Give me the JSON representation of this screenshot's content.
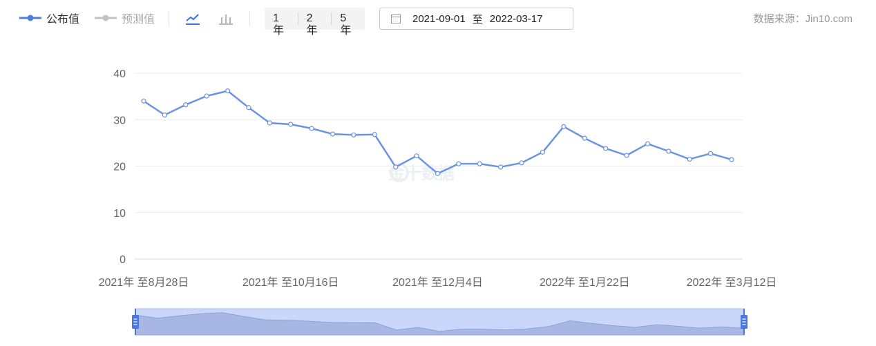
{
  "legend": {
    "published": {
      "label": "公布值",
      "color": "#4e7fe0"
    },
    "forecast": {
      "label": "预测值",
      "color": "#c2c2c2"
    }
  },
  "chart_type_buttons": {
    "line_icon": "line-chart-icon",
    "bar_icon": "bar-chart-icon"
  },
  "range_buttons": [
    "1年",
    "2年",
    "5年"
  ],
  "date_range": {
    "start": "2021-09-01",
    "separator": "至",
    "end": "2022-03-17"
  },
  "source_label": "数据来源：Jin10.com",
  "watermark": "金十数据",
  "chart_data": {
    "type": "line",
    "title": "",
    "xlabel": "",
    "ylabel": "",
    "ylim": [
      0,
      40
    ],
    "yticks": [
      0,
      10,
      20,
      30,
      40
    ],
    "x_tick_labels": [
      "2021年 至8月28日",
      "2021年 至10月16日",
      "2021年 至12月4日",
      "2022年 至1月22日",
      "2022年 至3月12日"
    ],
    "x_tick_indices": [
      0,
      7,
      14,
      21,
      28
    ],
    "grid": true,
    "series": [
      {
        "name": "公布值",
        "color": "#6a93e0",
        "values": [
          34.0,
          31.0,
          33.2,
          35.1,
          36.2,
          32.6,
          29.3,
          29.0,
          28.1,
          26.9,
          26.7,
          26.8,
          19.8,
          22.2,
          18.4,
          20.5,
          20.5,
          19.8,
          20.7,
          23.0,
          28.5,
          26.0,
          23.8,
          22.3,
          24.8,
          23.2,
          21.5,
          22.7,
          21.4
        ]
      }
    ]
  }
}
